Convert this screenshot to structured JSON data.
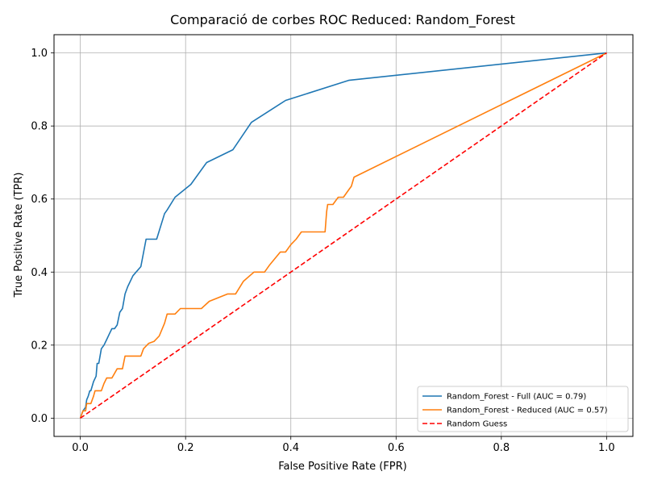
{
  "chart_data": {
    "type": "line",
    "title": "Comparació de corbes ROC Reduced: Random_Forest",
    "xlabel": "False Positive Rate (FPR)",
    "ylabel": "True Positive Rate (TPR)",
    "xlim": [
      -0.05,
      1.05
    ],
    "ylim": [
      -0.05,
      1.05
    ],
    "xticks": [
      "0.0",
      "0.2",
      "0.4",
      "0.6",
      "0.8",
      "1.0"
    ],
    "yticks": [
      "0.0",
      "0.2",
      "0.4",
      "0.6",
      "0.8",
      "1.0"
    ],
    "grid": true,
    "legend_position": "lower-right",
    "series": [
      {
        "name": "Random_Forest - Full (AUC = 0.79)",
        "color": "#1f77b4",
        "style": "solid",
        "x": [
          0.0,
          0.005,
          0.01,
          0.012,
          0.015,
          0.018,
          0.02,
          0.025,
          0.03,
          0.032,
          0.035,
          0.04,
          0.045,
          0.05,
          0.055,
          0.06,
          0.065,
          0.07,
          0.075,
          0.08,
          0.085,
          0.09,
          0.1,
          0.115,
          0.125,
          0.13,
          0.145,
          0.16,
          0.165,
          0.18,
          0.21,
          0.24,
          0.29,
          0.325,
          0.39,
          0.51,
          1.0
        ],
        "y": [
          0.0,
          0.02,
          0.03,
          0.05,
          0.06,
          0.075,
          0.075,
          0.1,
          0.115,
          0.15,
          0.15,
          0.19,
          0.2,
          0.215,
          0.23,
          0.245,
          0.245,
          0.255,
          0.29,
          0.3,
          0.34,
          0.36,
          0.39,
          0.415,
          0.49,
          0.49,
          0.49,
          0.56,
          0.57,
          0.605,
          0.64,
          0.7,
          0.735,
          0.81,
          0.87,
          0.925,
          1.0
        ]
      },
      {
        "name": "Random_Forest - Reduced (AUC = 0.57)",
        "color": "#ff7f0e",
        "style": "solid",
        "x": [
          0.0,
          0.005,
          0.01,
          0.012,
          0.015,
          0.02,
          0.025,
          0.028,
          0.03,
          0.035,
          0.04,
          0.045,
          0.05,
          0.06,
          0.07,
          0.075,
          0.08,
          0.085,
          0.09,
          0.1,
          0.115,
          0.12,
          0.13,
          0.14,
          0.15,
          0.16,
          0.165,
          0.18,
          0.19,
          0.23,
          0.245,
          0.28,
          0.295,
          0.31,
          0.33,
          0.35,
          0.36,
          0.38,
          0.39,
          0.4,
          0.41,
          0.42,
          0.445,
          0.465,
          0.468,
          0.47,
          0.48,
          0.49,
          0.5,
          0.51,
          0.515,
          0.52,
          1.0
        ],
        "y": [
          0.0,
          0.02,
          0.02,
          0.04,
          0.04,
          0.04,
          0.06,
          0.075,
          0.075,
          0.075,
          0.075,
          0.095,
          0.11,
          0.11,
          0.135,
          0.135,
          0.135,
          0.17,
          0.17,
          0.17,
          0.17,
          0.19,
          0.205,
          0.21,
          0.225,
          0.26,
          0.285,
          0.285,
          0.3,
          0.3,
          0.32,
          0.34,
          0.34,
          0.375,
          0.4,
          0.4,
          0.42,
          0.455,
          0.455,
          0.475,
          0.49,
          0.51,
          0.51,
          0.51,
          0.565,
          0.585,
          0.585,
          0.605,
          0.605,
          0.625,
          0.635,
          0.66,
          1.0
        ]
      },
      {
        "name": "Random Guess",
        "color": "#ff0000",
        "style": "dashed",
        "x": [
          0.0,
          1.0
        ],
        "y": [
          0.0,
          1.0
        ]
      }
    ]
  }
}
